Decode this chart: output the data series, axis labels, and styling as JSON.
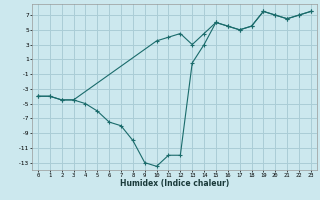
{
  "xlabel": "Humidex (Indice chaleur)",
  "background_color": "#cce8ee",
  "grid_color": "#aacdd6",
  "line_color": "#1a6b6b",
  "xlim": [
    -0.5,
    23.5
  ],
  "ylim": [
    -14,
    8.5
  ],
  "yticks": [
    7,
    5,
    3,
    1,
    -1,
    -3,
    -5,
    -7,
    -9,
    -11,
    -13
  ],
  "xticks": [
    0,
    1,
    2,
    3,
    4,
    5,
    6,
    7,
    8,
    9,
    10,
    11,
    12,
    13,
    14,
    15,
    16,
    17,
    18,
    19,
    20,
    21,
    22,
    23
  ],
  "series1_x": [
    0,
    1,
    2,
    3,
    10,
    11,
    12,
    13,
    14,
    15,
    16,
    17,
    18,
    19,
    20,
    21,
    22,
    23
  ],
  "series1_y": [
    -4,
    -4,
    -4.5,
    -4.5,
    3.5,
    4,
    4.5,
    3,
    4.5,
    6,
    5.5,
    5,
    5.5,
    7.5,
    7,
    6.5,
    7,
    7.5
  ],
  "series2_x": [
    0,
    1,
    2,
    3,
    4,
    5,
    6,
    7,
    8,
    9,
    10,
    11,
    12,
    13,
    14,
    15,
    16,
    17,
    18,
    19,
    20,
    21,
    22,
    23
  ],
  "series2_y": [
    -4,
    -4,
    -4.5,
    -4.5,
    -5,
    -6,
    -7.5,
    -8,
    -10,
    -13,
    -13.5,
    -12,
    -12,
    0.5,
    3,
    6,
    5.5,
    5,
    5.5,
    7.5,
    7,
    6.5,
    7,
    7.5
  ]
}
